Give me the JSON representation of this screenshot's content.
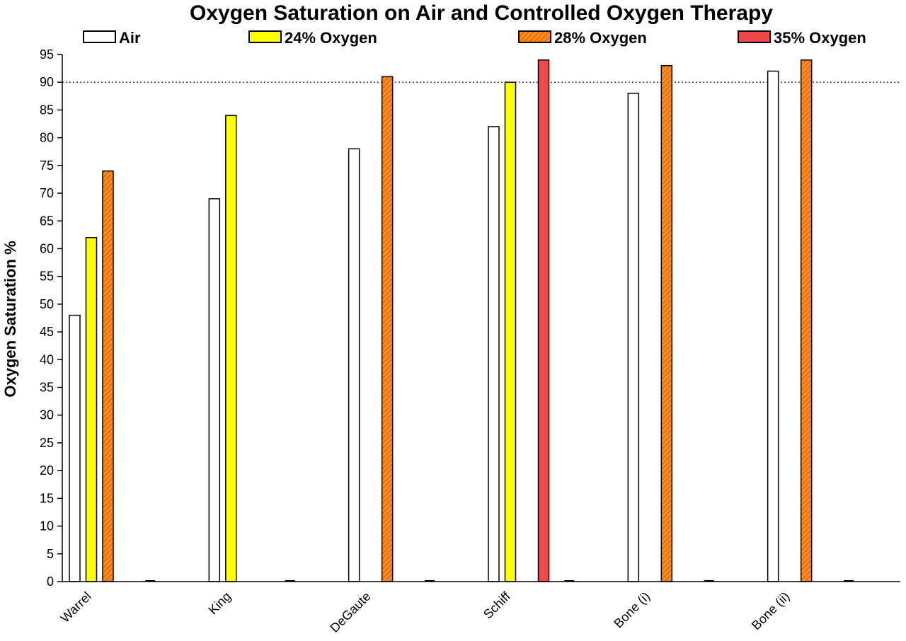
{
  "chart_data": {
    "type": "bar",
    "title": "Oxygen Saturation on Air and Controlled Oxygen Therapy",
    "xlabel": "",
    "ylabel": "Oxygen Saturation  %",
    "ylim": [
      0,
      95
    ],
    "ytick_step": 5,
    "reference_line": 90,
    "legend_position": "top",
    "categories": [
      "Warrel",
      "King",
      "DeGaute",
      "Schiff",
      "Bone (i)",
      "Bone (ii)"
    ],
    "series": [
      {
        "name": "Air",
        "color": "#ffffff",
        "pattern": "none",
        "values": [
          48,
          69,
          78,
          82,
          88,
          92
        ]
      },
      {
        "name": "24% Oxygen",
        "color": "#ffff00",
        "pattern": "none",
        "values": [
          62,
          84,
          null,
          90,
          null,
          null
        ]
      },
      {
        "name": "28% Oxygen",
        "color": "#ff8c1a",
        "pattern": "hatch",
        "values": [
          74,
          null,
          91,
          null,
          93,
          94
        ]
      },
      {
        "name": "35% Oxygen",
        "color": "#f04848",
        "pattern": "none",
        "values": [
          null,
          null,
          null,
          94,
          null,
          null
        ]
      }
    ]
  }
}
